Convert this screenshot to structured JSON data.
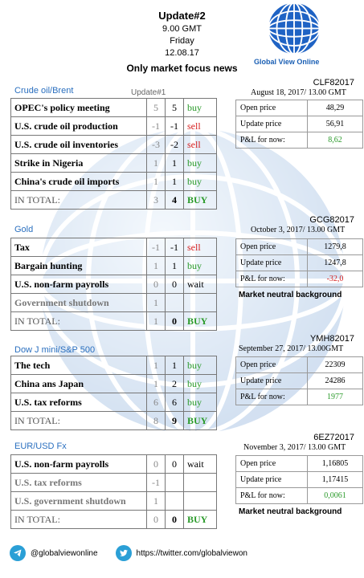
{
  "header": {
    "title": "Update#2",
    "time": "9.00 GMT",
    "day": "Friday",
    "date": "12.08.17",
    "subtitle": "Only market focus news"
  },
  "brand": {
    "name": "Global View Online"
  },
  "update_label": "Update#1",
  "sections": [
    {
      "title": "Crude oil/Brent",
      "rows": [
        {
          "label": "OPEC's policy meeting",
          "v1": "5",
          "v2": "5",
          "signal": "buy"
        },
        {
          "label": "U.S. crude oil production",
          "v1": "-1",
          "v2": "-1",
          "signal": "sell"
        },
        {
          "label": "U.S. crude oil inventories",
          "v1": "-3",
          "v2": "-2",
          "signal": "sell"
        },
        {
          "label": "Strike in Nigeria",
          "v1": "1",
          "v2": "1",
          "signal": "buy"
        },
        {
          "label": "China's crude oil imports",
          "v1": "1",
          "v2": "1",
          "signal": "buy"
        }
      ],
      "total": {
        "label": "IN TOTAL:",
        "v1": "3",
        "v2": "4",
        "signal": "BUY"
      },
      "side": {
        "code": "CLF82017",
        "date": "August 18, 2017/ 13.00 GMT",
        "rows": [
          {
            "k": "Open price",
            "v": "48,29"
          },
          {
            "k": "Update price",
            "v": "56,91"
          },
          {
            "k": "P&L for now:",
            "v": "8,62",
            "tone": "pos"
          }
        ],
        "note": ""
      }
    },
    {
      "title": "Gold",
      "rows": [
        {
          "label": "Tax",
          "v1": "-1",
          "v2": "-1",
          "signal": "sell"
        },
        {
          "label": "Bargain hunting",
          "v1": "1",
          "v2": "1",
          "signal": "buy"
        },
        {
          "label": "U.S. non-farm payrolls",
          "v1": "0",
          "v2": "0",
          "signal": "wait"
        },
        {
          "label": "Government shutdown",
          "v1": "1",
          "v2": "",
          "signal": "",
          "grey": true
        }
      ],
      "total": {
        "label": "IN TOTAL:",
        "v1": "1",
        "v2": "0",
        "signal": "BUY"
      },
      "side": {
        "code": "GCG82017",
        "date": "October 3, 2017/ 13.00 GMT",
        "rows": [
          {
            "k": "Open price",
            "v": "1279,8"
          },
          {
            "k": "Update price",
            "v": "1247,8"
          },
          {
            "k": "P&L for now:",
            "v": "-32,0",
            "tone": "neg"
          }
        ],
        "note": "Market neutral background"
      }
    },
    {
      "title": "Dow J mini/S&P 500",
      "rows": [
        {
          "label": "The tech",
          "v1": "1",
          "v2": "1",
          "signal": "buy"
        },
        {
          "label": "China ans Japan",
          "v1": "1",
          "v2": "2",
          "signal": "buy"
        },
        {
          "label": "U.S. tax reforms",
          "v1": "6",
          "v2": "6",
          "signal": "buy"
        }
      ],
      "total": {
        "label": "IN TOTAL:",
        "v1": "8",
        "v2": "9",
        "signal": "BUY"
      },
      "side": {
        "code": "YMH82017",
        "date": "September 27, 2017/ 13.00GMT",
        "rows": [
          {
            "k": "Open price",
            "v": "22309"
          },
          {
            "k": "Update price",
            "v": "24286"
          },
          {
            "k": "P&L for now:",
            "v": "1977",
            "tone": "pos"
          }
        ],
        "note": ""
      }
    },
    {
      "title": "EUR/USD Fx",
      "rows": [
        {
          "label": "U.S. non-farm payrolls",
          "v1": "0",
          "v2": "0",
          "signal": "wait"
        },
        {
          "label": "U.S. tax reforms",
          "v1": "-1",
          "v2": "",
          "signal": "",
          "grey": true
        },
        {
          "label": "U.S. government shutdown",
          "v1": "1",
          "v2": "",
          "signal": "",
          "grey": true
        }
      ],
      "total": {
        "label": "IN TOTAL:",
        "v1": "0",
        "v2": "0",
        "signal": "BUY"
      },
      "side": {
        "code": "6EZ72017",
        "date": "November 3, 2017/ 13.00 GMT",
        "rows": [
          {
            "k": "Open price",
            "v": "1,16805"
          },
          {
            "k": "Update price",
            "v": "1,17415"
          },
          {
            "k": "P&L for now:",
            "v": "0,0061",
            "tone": "pos"
          }
        ],
        "note": "Market neutral background"
      }
    }
  ],
  "footer": {
    "telegram_handle": "@globalviewonline",
    "twitter_url": "https://twitter.com/globalviewon"
  },
  "icons": {
    "telegram": "telegram-icon",
    "twitter": "twitter-icon",
    "logo": "globe-logo-icon"
  },
  "colors": {
    "accent": "#2a6fbf",
    "buy": "#2a9a2a",
    "sell": "#d62020"
  }
}
